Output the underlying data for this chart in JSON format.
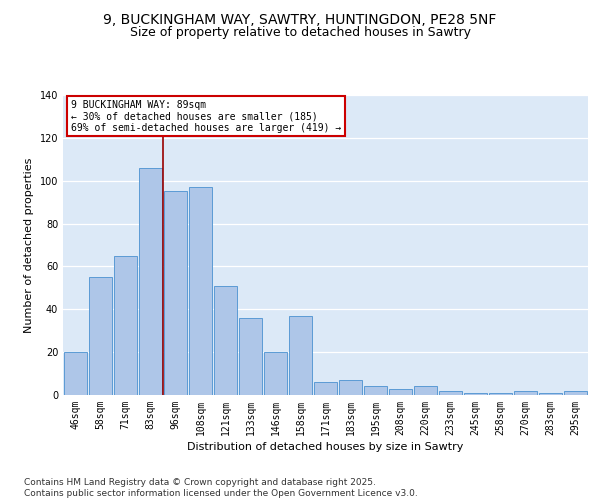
{
  "title_line1": "9, BUCKINGHAM WAY, SAWTRY, HUNTINGDON, PE28 5NF",
  "title_line2": "Size of property relative to detached houses in Sawtry",
  "xlabel": "Distribution of detached houses by size in Sawtry",
  "ylabel": "Number of detached properties",
  "categories": [
    "46sqm",
    "58sqm",
    "71sqm",
    "83sqm",
    "96sqm",
    "108sqm",
    "121sqm",
    "133sqm",
    "146sqm",
    "158sqm",
    "171sqm",
    "183sqm",
    "195sqm",
    "208sqm",
    "220sqm",
    "233sqm",
    "245sqm",
    "258sqm",
    "270sqm",
    "283sqm",
    "295sqm"
  ],
  "bar_values": [
    20,
    55,
    65,
    106,
    95,
    97,
    51,
    36,
    20,
    37,
    6,
    7,
    4,
    3,
    4,
    2,
    1,
    1,
    2,
    1,
    2
  ],
  "bar_color": "#aec6e8",
  "bar_edge_color": "#5b9bd5",
  "background_color": "#dce9f7",
  "vline_x": 3.5,
  "vline_color": "#990000",
  "annotation_text": "9 BUCKINGHAM WAY: 89sqm\n← 30% of detached houses are smaller (185)\n69% of semi-detached houses are larger (419) →",
  "annotation_box_color": "#ffffff",
  "annotation_box_edge": "#cc0000",
  "ylim": [
    0,
    140
  ],
  "yticks": [
    0,
    20,
    40,
    60,
    80,
    100,
    120,
    140
  ],
  "footer_text": "Contains HM Land Registry data © Crown copyright and database right 2025.\nContains public sector information licensed under the Open Government Licence v3.0.",
  "title_fontsize": 10,
  "subtitle_fontsize": 9,
  "axis_label_fontsize": 8,
  "tick_fontsize": 7,
  "footer_fontsize": 6.5
}
